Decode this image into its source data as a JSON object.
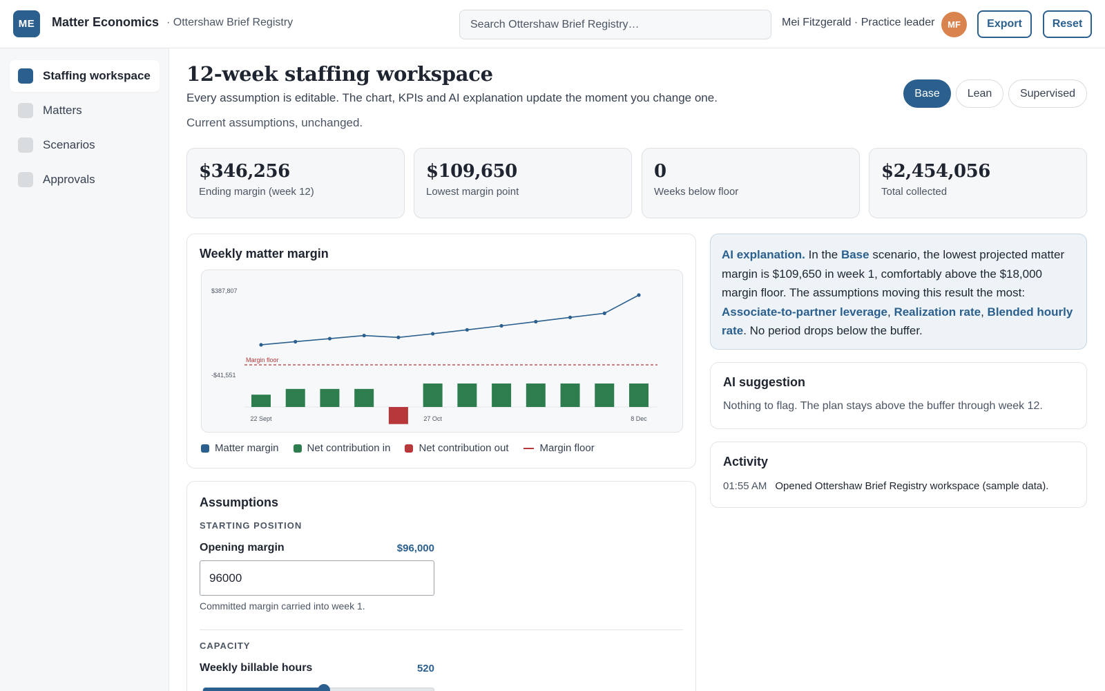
{
  "app": {
    "logo_initials": "ME",
    "name": "Matter Economics",
    "subtitle": "· Ottershaw Brief Registry"
  },
  "search": {
    "placeholder": "Search Ottershaw Brief Registry…"
  },
  "user": {
    "label": "Mei Fitzgerald · Practice leader",
    "initials": "MF"
  },
  "toolbar": {
    "export_label": "Export",
    "reset_label": "Reset"
  },
  "sidebar": {
    "items": [
      {
        "label": "Staffing workspace",
        "active": true
      },
      {
        "label": "Matters",
        "active": false
      },
      {
        "label": "Scenarios",
        "active": false
      },
      {
        "label": "Approvals",
        "active": false
      }
    ]
  },
  "page": {
    "title": "12-week staffing workspace",
    "description": "Every assumption is editable. The chart, KPIs and AI explanation update the moment you change one.",
    "status": "Current assumptions, unchanged."
  },
  "scenarios": {
    "options": [
      "Base",
      "Lean",
      "Supervised"
    ],
    "selected": "Base"
  },
  "kpis": [
    {
      "value": "$346,256",
      "label": "Ending margin (week 12)"
    },
    {
      "value": "$109,650",
      "label": "Lowest margin point"
    },
    {
      "value": "0",
      "label": "Weeks below floor"
    },
    {
      "value": "$2,454,056",
      "label": "Total collected"
    }
  ],
  "chart": {
    "title": "Weekly matter margin",
    "floor_label": "Margin floor",
    "legend": {
      "margin": "Matter margin",
      "net_in": "Net contribution in",
      "net_out": "Net contribution out",
      "floor": "Margin floor"
    }
  },
  "chart_data": {
    "type": "line",
    "title": "Weekly matter margin",
    "y_tick_labels": [
      "$387,807",
      "-$41,551"
    ],
    "x_tick_labels": [
      "22 Sept",
      "27 Oct",
      "8 Dec"
    ],
    "x_tick_weeks": [
      1,
      6,
      12
    ],
    "x": [
      1,
      2,
      3,
      4,
      5,
      6,
      7,
      8,
      9,
      10,
      11,
      12
    ],
    "ylim": [
      -41551,
      387807
    ],
    "floor": 18000,
    "series": [
      {
        "name": "Matter margin",
        "kind": "line",
        "color": "#2a5f8e",
        "values": [
          109650,
          124500,
          139000,
          153800,
          144900,
          162200,
          181000,
          200000,
          219800,
          240000,
          259500,
          346256
        ]
      },
      {
        "name": "Net contribution in",
        "kind": "bar",
        "color": "#2e7d4f",
        "values": [
          13650,
          20000,
          20000,
          20000,
          null,
          26000,
          26000,
          26000,
          26000,
          26000,
          26000,
          26000
        ]
      },
      {
        "name": "Net contribution out",
        "kind": "bar",
        "color": "#b8373a",
        "values": [
          null,
          null,
          null,
          null,
          -14000,
          null,
          null,
          null,
          null,
          null,
          null,
          null
        ]
      }
    ],
    "grid": false,
    "legend_position": "bottom-left"
  },
  "assumptions": {
    "title": "Assumptions",
    "starting_position": {
      "heading": "STARTING POSITION",
      "label": "Opening margin",
      "display_value": "$96,000",
      "input_value": "96000",
      "help": "Committed margin carried into week 1."
    },
    "capacity": {
      "heading": "CAPACITY",
      "label": "Weekly billable hours",
      "display_value": "520",
      "slider_fraction": 0.52
    }
  },
  "ai_explanation": {
    "label": "AI explanation.",
    "pre": "In the",
    "scenario": "Base",
    "body": "scenario, the lowest projected matter margin is $109,650 in week 1, comfortably above the $18,000 margin floor. The assumptions moving this result the most:",
    "drivers": [
      "Associate-to-partner leverage",
      "Realization rate",
      "Blended hourly rate"
    ],
    "tail": "No period drops below the buffer."
  },
  "ai_suggestion": {
    "title": "AI suggestion",
    "text": "Nothing to flag. The plan stays above the buffer through week 12."
  },
  "activity": {
    "title": "Activity",
    "entries": [
      {
        "time": "01:55 AM",
        "text": "Opened Ottershaw Brief Registry workspace (sample data)."
      }
    ]
  },
  "colors": {
    "accent": "#2a5f8e",
    "positive": "#2e7d4f",
    "negative": "#b8373a",
    "avatar": "#d9834f"
  }
}
